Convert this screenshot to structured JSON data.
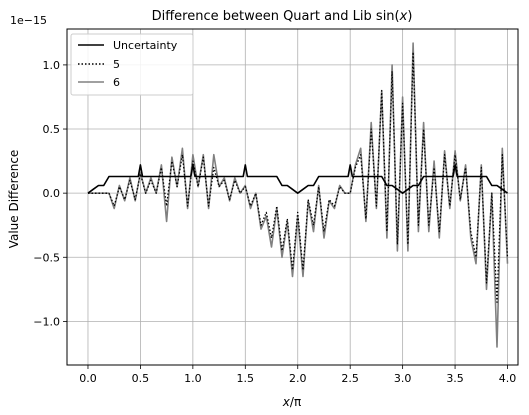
{
  "chart_data": {
    "type": "line",
    "title_main": "Difference between Quart and Lib sin(",
    "title_var": "x",
    "title_close": ")",
    "xlabel_var": "x",
    "xlabel_rest": "/π",
    "ylabel": "Value Difference",
    "y_multiplier": "1e−15",
    "xlim": [
      -0.2,
      4.1
    ],
    "ylim": [
      -1.34,
      1.28
    ],
    "x_ticks": [
      0.0,
      0.5,
      1.0,
      1.5,
      2.0,
      2.5,
      3.0,
      3.5,
      4.0
    ],
    "x_tick_labels": [
      "0.0",
      "0.5",
      "1.0",
      "1.5",
      "2.0",
      "2.5",
      "3.0",
      "3.5",
      "4.0"
    ],
    "y_ticks": [
      -1.0,
      -0.5,
      0.0,
      0.5,
      1.0
    ],
    "y_tick_labels": [
      "−1.0",
      "−0.5",
      "0.0",
      "0.5",
      "1.0"
    ],
    "grid": true,
    "legend_position": "upper-left",
    "series": [
      {
        "name": "Uncertainty",
        "color": "#000000",
        "style": "solid",
        "x": [
          0.0,
          0.05,
          0.1,
          0.15,
          0.2,
          0.25,
          0.3,
          0.4,
          0.48,
          0.5,
          0.52,
          0.6,
          0.8,
          0.95,
          0.98,
          1.0,
          1.02,
          1.05,
          1.2,
          1.45,
          1.48,
          1.5,
          1.52,
          1.55,
          1.8,
          1.85,
          1.9,
          1.95,
          2.0,
          2.05,
          2.1,
          2.15,
          2.2,
          2.45,
          2.48,
          2.5,
          2.52,
          2.55,
          2.8,
          2.85,
          2.9,
          2.95,
          3.0,
          3.05,
          3.1,
          3.15,
          3.2,
          3.45,
          3.48,
          3.5,
          3.52,
          3.55,
          3.8,
          3.85,
          3.9,
          3.95,
          4.0
        ],
        "y": [
          0.0,
          0.03,
          0.06,
          0.06,
          0.13,
          0.13,
          0.13,
          0.13,
          0.13,
          0.22,
          0.13,
          0.13,
          0.13,
          0.13,
          0.13,
          0.22,
          0.13,
          0.13,
          0.13,
          0.13,
          0.13,
          0.22,
          0.13,
          0.13,
          0.13,
          0.06,
          0.06,
          0.03,
          0.0,
          0.03,
          0.06,
          0.06,
          0.13,
          0.13,
          0.13,
          0.22,
          0.13,
          0.13,
          0.13,
          0.06,
          0.06,
          0.03,
          0.0,
          0.03,
          0.06,
          0.06,
          0.13,
          0.13,
          0.13,
          0.22,
          0.13,
          0.13,
          0.13,
          0.06,
          0.06,
          0.03,
          0.0
        ]
      },
      {
        "name": "5",
        "color": "#000000",
        "style": "dotted",
        "x": [
          0.0,
          0.1,
          0.2,
          0.25,
          0.3,
          0.35,
          0.4,
          0.45,
          0.5,
          0.55,
          0.6,
          0.65,
          0.7,
          0.75,
          0.8,
          0.85,
          0.9,
          0.95,
          1.0,
          1.05,
          1.1,
          1.15,
          1.2,
          1.25,
          1.3,
          1.35,
          1.4,
          1.45,
          1.5,
          1.55,
          1.6,
          1.65,
          1.7,
          1.75,
          1.8,
          1.85,
          1.9,
          1.95,
          2.0,
          2.05,
          2.1,
          2.15,
          2.2,
          2.25,
          2.3,
          2.35,
          2.4,
          2.45,
          2.5,
          2.55,
          2.6,
          2.65,
          2.7,
          2.75,
          2.8,
          2.85,
          2.9,
          2.95,
          3.0,
          3.05,
          3.1,
          3.15,
          3.2,
          3.25,
          3.3,
          3.35,
          3.4,
          3.45,
          3.5,
          3.55,
          3.6,
          3.65,
          3.7,
          3.75,
          3.8,
          3.85,
          3.9,
          3.95,
          4.0
        ],
        "y": [
          0.0,
          0.0,
          0.0,
          -0.1,
          0.05,
          -0.05,
          0.1,
          -0.05,
          0.15,
          0.0,
          0.1,
          0.0,
          0.2,
          -0.1,
          0.25,
          0.05,
          0.3,
          -0.1,
          0.25,
          0.05,
          0.28,
          -0.1,
          0.2,
          0.05,
          0.1,
          -0.05,
          0.1,
          0.0,
          0.05,
          -0.1,
          0.0,
          -0.25,
          -0.15,
          -0.35,
          -0.1,
          -0.45,
          -0.2,
          -0.6,
          -0.15,
          -0.6,
          -0.05,
          -0.25,
          0.05,
          -0.3,
          -0.05,
          -0.1,
          0.05,
          0.0,
          0.0,
          0.2,
          0.3,
          -0.2,
          0.5,
          -0.1,
          0.8,
          -0.3,
          0.95,
          -0.4,
          0.7,
          -0.4,
          1.1,
          -0.25,
          0.5,
          -0.25,
          0.2,
          -0.3,
          0.3,
          -0.1,
          0.3,
          -0.05,
          0.2,
          -0.3,
          -0.5,
          0.2,
          -0.7,
          0.0,
          -0.85,
          0.3,
          -0.5
        ]
      },
      {
        "name": "6",
        "color": "#808080",
        "style": "solid",
        "x": [
          0.0,
          0.1,
          0.2,
          0.25,
          0.3,
          0.35,
          0.4,
          0.45,
          0.5,
          0.55,
          0.6,
          0.65,
          0.7,
          0.75,
          0.8,
          0.85,
          0.9,
          0.95,
          1.0,
          1.05,
          1.1,
          1.15,
          1.2,
          1.25,
          1.3,
          1.35,
          1.4,
          1.45,
          1.5,
          1.55,
          1.6,
          1.65,
          1.7,
          1.75,
          1.8,
          1.85,
          1.9,
          1.95,
          2.0,
          2.05,
          2.1,
          2.15,
          2.2,
          2.25,
          2.3,
          2.35,
          2.4,
          2.45,
          2.5,
          2.55,
          2.6,
          2.65,
          2.7,
          2.75,
          2.8,
          2.85,
          2.9,
          2.95,
          3.0,
          3.05,
          3.1,
          3.15,
          3.2,
          3.25,
          3.3,
          3.35,
          3.4,
          3.45,
          3.5,
          3.55,
          3.6,
          3.65,
          3.7,
          3.75,
          3.8,
          3.85,
          3.9,
          3.95,
          4.0
        ],
        "y": [
          0.0,
          0.0,
          0.0,
          -0.12,
          0.06,
          -0.06,
          0.12,
          -0.06,
          0.16,
          0.0,
          0.12,
          0.0,
          0.22,
          -0.22,
          0.28,
          0.05,
          0.35,
          -0.12,
          0.3,
          0.05,
          0.3,
          -0.12,
          0.3,
          0.05,
          0.12,
          -0.06,
          0.12,
          0.0,
          0.06,
          -0.12,
          0.0,
          -0.28,
          -0.18,
          -0.42,
          -0.12,
          -0.5,
          -0.22,
          -0.65,
          -0.18,
          -0.65,
          -0.06,
          -0.3,
          0.06,
          -0.35,
          -0.06,
          -0.12,
          0.06,
          0.0,
          0.0,
          0.22,
          0.35,
          -0.22,
          0.55,
          -0.12,
          0.8,
          -0.35,
          1.0,
          -0.45,
          0.75,
          -0.45,
          1.17,
          -0.3,
          0.55,
          -0.3,
          0.25,
          -0.35,
          0.33,
          -0.12,
          0.33,
          -0.06,
          0.22,
          -0.35,
          -0.55,
          0.22,
          -0.75,
          0.0,
          -1.2,
          0.35,
          -0.55
        ]
      }
    ]
  }
}
